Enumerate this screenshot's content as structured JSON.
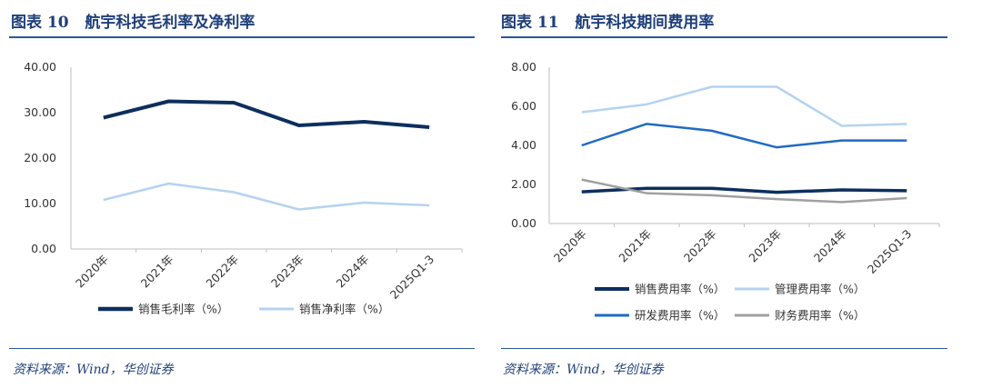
{
  "panels": [
    {
      "title": "图表 10   航宇科技毛利率及净利率",
      "source": "资料来源：Wind，华创证券"
    },
    {
      "title": "图表 11   航宇科技期间费用率",
      "source": "资料来源：Wind，华创证券"
    }
  ],
  "chart_data": [
    {
      "type": "line",
      "title": "航宇科技毛利率及净利率",
      "categories": [
        "2020年",
        "2021年",
        "2022年",
        "2023年",
        "2024年",
        "2025Q1-3"
      ],
      "ylim": [
        0,
        40
      ],
      "yticks": [
        "0.00",
        "10.00",
        "20.00",
        "30.00",
        "40.00"
      ],
      "grid": false,
      "legend": "bottom",
      "series": [
        {
          "name": "销售毛利率（%）",
          "color": "#0d2f5e",
          "values": [
            28.9,
            32.5,
            32.2,
            27.2,
            28.0,
            26.8
          ]
        },
        {
          "name": "销售净利率（%）",
          "color": "#b4d3ef",
          "values": [
            10.8,
            14.4,
            12.5,
            8.7,
            10.2,
            9.6
          ]
        }
      ]
    },
    {
      "type": "line",
      "title": "航宇科技期间费用率",
      "categories": [
        "2020年",
        "2021年",
        "2022年",
        "2023年",
        "2024年",
        "2025Q1-3"
      ],
      "ylim": [
        0,
        8
      ],
      "yticks": [
        "0.00",
        "2.00",
        "4.00",
        "6.00",
        "8.00"
      ],
      "grid": false,
      "legend": "bottom",
      "series": [
        {
          "name": "销售费用率（%）",
          "color": "#0d2f5e",
          "values": [
            1.62,
            1.8,
            1.8,
            1.6,
            1.72,
            1.68
          ]
        },
        {
          "name": "管理费用率（%）",
          "color": "#b4d3ef",
          "values": [
            5.7,
            6.1,
            7.0,
            7.0,
            5.0,
            5.1
          ]
        },
        {
          "name": "研发费用率（%）",
          "color": "#1f6ac4",
          "values": [
            4.0,
            5.1,
            4.75,
            3.9,
            4.25,
            4.25
          ]
        },
        {
          "name": "财务费用率（%）",
          "color": "#a0a0a0",
          "values": [
            2.25,
            1.55,
            1.45,
            1.25,
            1.1,
            1.3
          ]
        }
      ]
    }
  ]
}
